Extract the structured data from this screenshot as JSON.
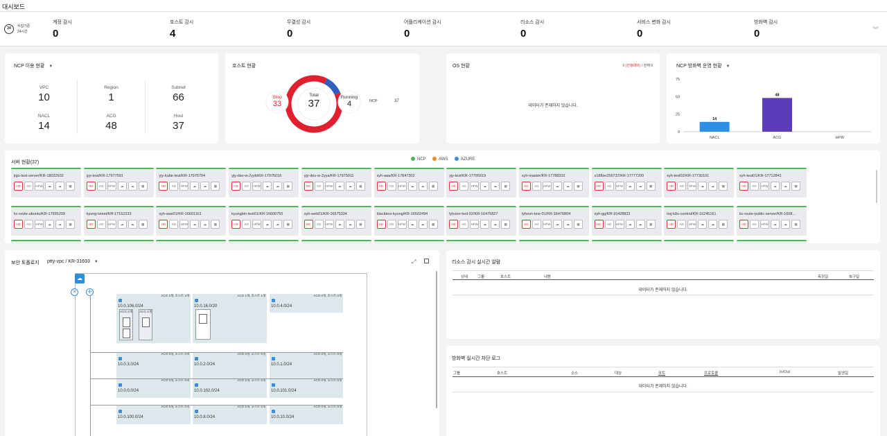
{
  "page_title": "대시보드",
  "collect": {
    "line1": "수집기준",
    "line2": "24시간",
    "badge": "24"
  },
  "summary": [
    {
      "label": "계정 감시",
      "value": "0"
    },
    {
      "label": "호스트 감시",
      "value": "4"
    },
    {
      "label": "무결성 감시",
      "value": "0"
    },
    {
      "label": "어플리케이션 감시",
      "value": "0"
    },
    {
      "label": "리소스 감시",
      "value": "0"
    },
    {
      "label": "서비스 변화 감시",
      "value": "0"
    },
    {
      "label": "방화벽 감시",
      "value": "0"
    }
  ],
  "ncp_usage": {
    "title": "NCP 이용 현황",
    "cells": [
      {
        "label": "VPC",
        "value": "10"
      },
      {
        "label": "Region",
        "value": "1"
      },
      {
        "label": "Subnet",
        "value": "66"
      },
      {
        "label": "NACL",
        "value": "14"
      },
      {
        "label": "ACG",
        "value": "48"
      },
      {
        "label": "Host",
        "value": "37"
      }
    ]
  },
  "host_status": {
    "title": "호스트 현황",
    "stop_label": "Stop",
    "stop_value": 33,
    "total_label": "Total",
    "total_value": "37",
    "running_label": "Running",
    "running_value": 4,
    "ncp_label": "NCP",
    "ncp_value": "37",
    "colors": {
      "stop": "#e0202e",
      "running": "#2f5fbf"
    }
  },
  "os_status": {
    "title": "OS 현황",
    "right_red": "0 (전월대비)",
    "right_rest": " / 전체 0",
    "empty": "데이터가 존재하지 않습니다."
  },
  "firewall_chart": {
    "title": "NCP 방화벽 운영 현황",
    "chart_data": {
      "type": "bar",
      "categories": [
        "NACL",
        "ACG",
        "HFW"
      ],
      "values": [
        14,
        48,
        0
      ],
      "ylim": [
        0,
        75
      ],
      "yticks": [
        "75",
        "50",
        "25",
        "0"
      ],
      "colors": [
        "#2f8ee8",
        "#5c3cb8",
        "#999999"
      ],
      "data_labels": [
        "14",
        "48",
        ""
      ]
    }
  },
  "servers": {
    "title": "서버 현황(37)",
    "legend": [
      {
        "label": "NCP",
        "color": "#49b657"
      },
      {
        "label": "AWS",
        "color": "#f08a24"
      },
      {
        "label": "AZURE",
        "color": "#3a8dde"
      }
    ],
    "badges": [
      "HD",
      "AG",
      "HFW",
      "",
      "",
      ""
    ],
    "row1": [
      "jigo-test-server/KR-18032932",
      "jyp-test/KR-17977591",
      "yjy-kube-test/KR-17975704",
      "yjy-dev-w-2yyb/KR-17975018",
      "yjy-dev-w-2yya/KR-17975011",
      "syh-aaa/KR-17847302",
      "yjy-test/KR-17795919",
      "syh-master/KR-17788332",
      "s188se256737/KR-17777200",
      "syh-test02/KR-17730101",
      "syh-test01/KR-17712841"
    ],
    "row2": [
      "kc-route-ubuntu/KR-17555209",
      "kyung-ivtest/KR-17152233",
      "syh-was01/KR-16601161",
      "kyungbin-test01/KR-16600755",
      "syh-web01/KR-16575334",
      "blackbox-kyung/KR-16502494",
      "lyhoon-test-02/KR-16476827",
      "lyhoon-test-01/KR-16476804",
      "syh-gg/KR-16428822",
      "hsj-k8s-control/KR-16245161",
      "kc-route-public-server/KR-1608..."
    ]
  },
  "topology": {
    "title": "보안 토폴로지",
    "vpc": "ptty-vpc / KR-31693",
    "subnets": [
      {
        "acg": "ACG 2개, 호스트 3개",
        "cidr": "10.0.106.0/24",
        "inner": [
          "ACG 2개",
          "ACG 2개"
        ]
      },
      {
        "acg": "ACG 1개, 호스트 1개",
        "cidr": "10.0.16.0/20"
      },
      {
        "acg": "ACG 0개, 호스트 0개",
        "cidr": "10.0.4.0/24"
      },
      {
        "acg": "ACG 0개, 호스트 0개",
        "cidr": "10.0.3.0/24"
      },
      {
        "acg": "ACG 0개, 호스트 0개",
        "cidr": "10.0.2.0/24"
      },
      {
        "acg": "ACG 0개, 호스트 0개",
        "cidr": "10.0.1.0/24"
      },
      {
        "acg": "ACG 0개, 호스트 0개",
        "cidr": "10.0.0.0/24"
      },
      {
        "acg": "ACG 0개, 호스트 0개",
        "cidr": "10.0.102.0/24"
      },
      {
        "acg": "ACG 0개, 호스트 0개",
        "cidr": "10.0.101.0/24"
      },
      {
        "acg": "ACG 0개, 호스트 0개",
        "cidr": "10.0.100.0/24"
      },
      {
        "acg": "ACG 0개, 호스트 0개",
        "cidr": "10.0.8.0/24"
      },
      {
        "acg": "ACG 0개, 호스트 0개",
        "cidr": "10.0.10.0/24"
      }
    ]
  },
  "resource_alerts": {
    "title": "리소스 감시 실시간 알람",
    "headers": [
      "상태",
      "그룹",
      "호스트",
      "내용",
      "측정일",
      "복구일"
    ],
    "empty": "데이터가 존재하지 않습니다."
  },
  "firewall_log": {
    "title": "방화벽 실시간 차단 로그",
    "headers": [
      "그룹",
      "호스트",
      "소스",
      "대상",
      "포트",
      "프로토콜",
      "In/Out",
      "발생일"
    ],
    "empty": "데이터가 존재하지 않습니다."
  }
}
